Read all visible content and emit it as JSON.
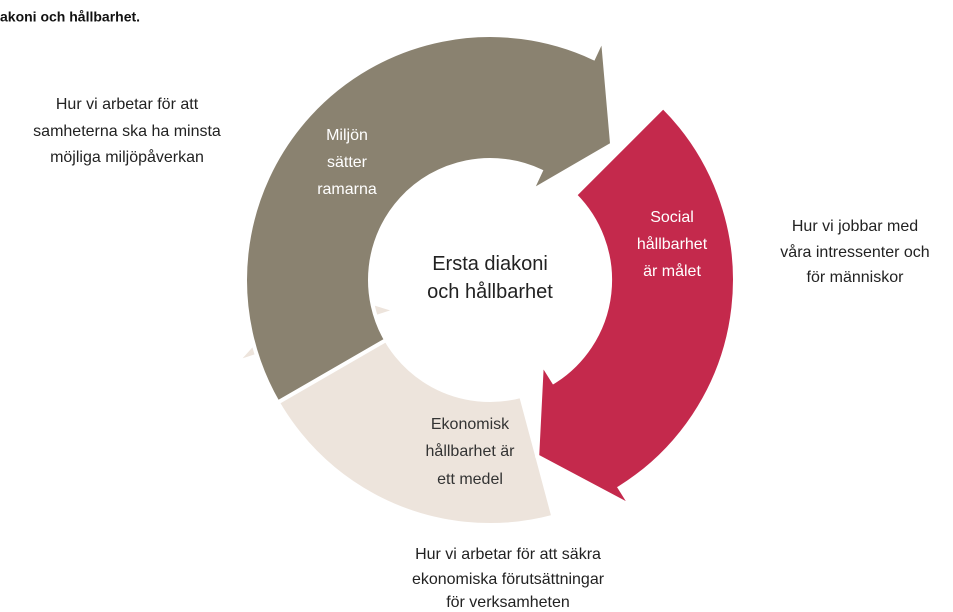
{
  "title": "akoni och hållbarhet.",
  "center": [
    "Ersta diakoni",
    "och hållbarhet"
  ],
  "segments": [
    {
      "label": [
        "Miljön",
        "sätter",
        "ramarna"
      ],
      "description": [
        "Hur vi arbetar för att",
        "samheterna ska ha minsta",
        "möjliga miljöpåverkan"
      ]
    },
    {
      "label": [
        "Social",
        "hållbarhet",
        "är målet"
      ],
      "description": [
        "Hur vi jobbar med",
        "våra intressenter och",
        "för människor"
      ]
    },
    {
      "label": [
        "Ekonomisk",
        "hållbarhet är",
        "ett medel"
      ],
      "description": [
        "Hur vi arbetar för att säkra",
        "ekonomiska förutsättningar",
        "för verksamheten"
      ]
    }
  ]
}
